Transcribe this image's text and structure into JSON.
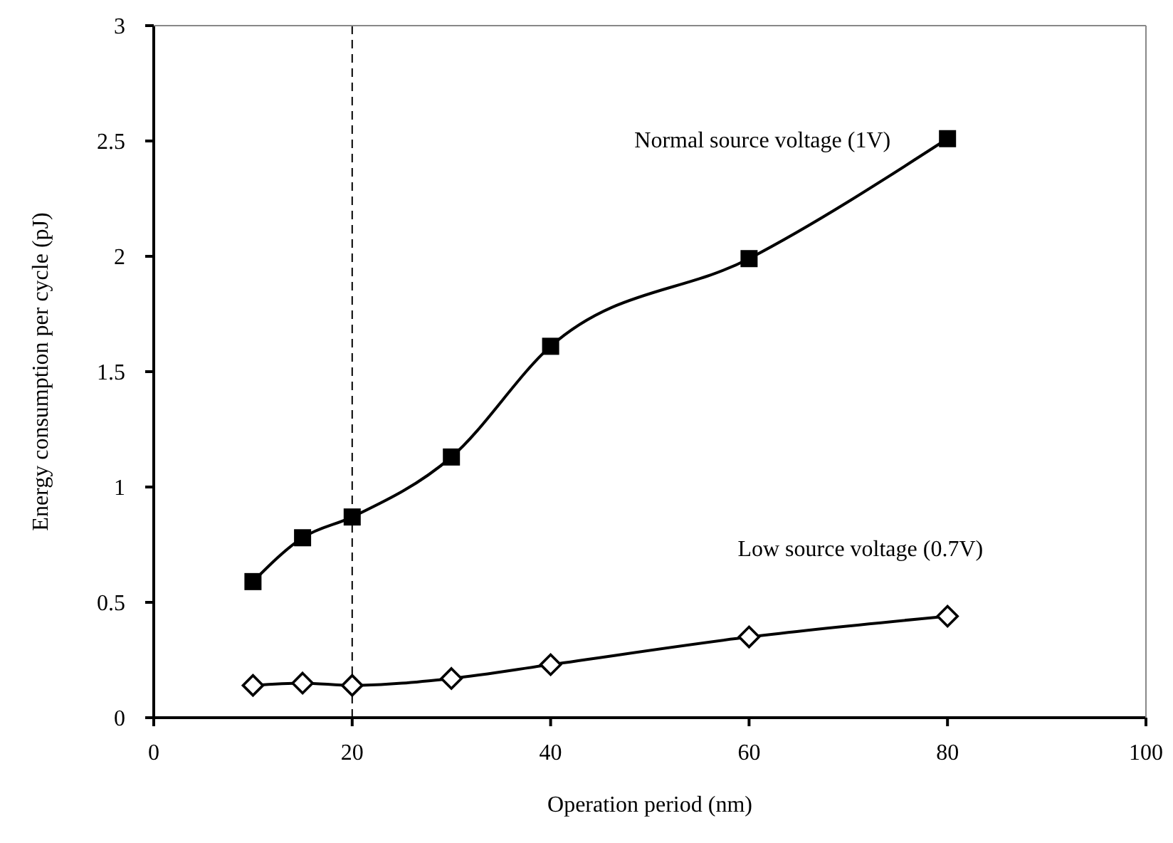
{
  "chart_data": {
    "type": "line",
    "xlabel": "Operation period (nm)",
    "ylabel": "Energy consumption per cycle (pJ)",
    "x": [
      10,
      15,
      20,
      30,
      40,
      60,
      80
    ],
    "series": [
      {
        "name": "Normal source voltage (1V)",
        "color": "#000000",
        "marker": "square",
        "values": [
          0.59,
          0.78,
          0.87,
          1.13,
          1.61,
          1.99,
          2.51
        ]
      },
      {
        "name": "Low source voltage (0.7V)",
        "color": "#000000",
        "marker": "diamond",
        "values": [
          0.14,
          0.15,
          0.14,
          0.17,
          0.23,
          0.35,
          0.44
        ]
      }
    ],
    "xlim": [
      0,
      100
    ],
    "xticks": [
      0,
      20,
      40,
      60,
      80,
      100
    ],
    "ylim": [
      0,
      3
    ],
    "yticks": [
      0,
      0.5,
      1,
      1.5,
      2,
      2.5,
      3
    ],
    "ref_lines": [
      {
        "axis": "x",
        "value": 20,
        "color": "#000000",
        "line_style": "dashed"
      }
    ],
    "grid": false,
    "legend": false,
    "line_style": "solid"
  }
}
